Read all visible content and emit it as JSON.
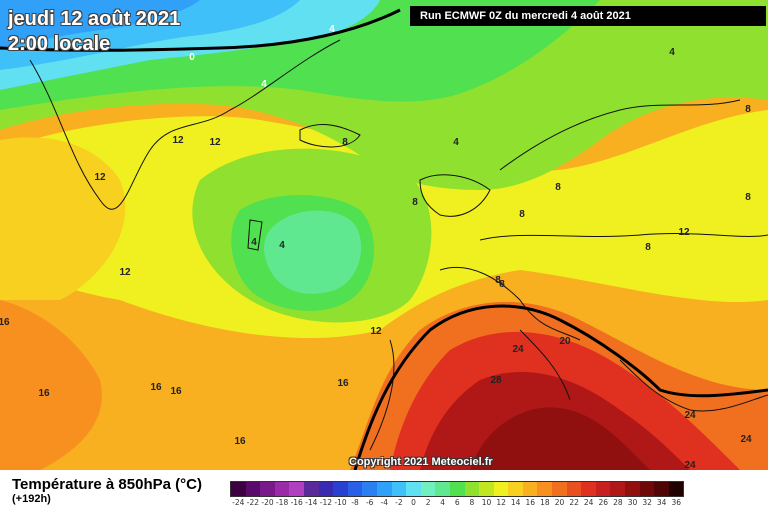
{
  "header": {
    "date": "jeudi 12 août 2021",
    "local_time": "2:00 locale",
    "run_info": "Run ECMWF 0Z du mercredi 4 août 2021"
  },
  "copyright": "Copyright 2021 Meteociel.fr",
  "footer": {
    "variable_title": "Température à 850hPa (°C)",
    "forecast_offset": "(+192h)"
  },
  "colorscale": {
    "values": [
      "-24",
      "-22",
      "-20",
      "-18",
      "-16",
      "-14",
      "-12",
      "-10",
      "-8",
      "-6",
      "-4",
      "-2",
      "0",
      "2",
      "4",
      "6",
      "8",
      "10",
      "12",
      "14",
      "16",
      "18",
      "20",
      "22",
      "24",
      "26",
      "28",
      "30",
      "32",
      "34",
      "36"
    ],
    "colors": [
      "#3d0040",
      "#5a0a6a",
      "#7a1a8a",
      "#9a2aa8",
      "#b040c0",
      "#5a2a9a",
      "#3a2ab0",
      "#2a40d0",
      "#2a60e8",
      "#2a80f0",
      "#30a0f8",
      "#40c0f8",
      "#60e0f0",
      "#70f0c0",
      "#60e890",
      "#50e050",
      "#90e030",
      "#c0e820",
      "#f0f020",
      "#f8d020",
      "#f8b020",
      "#f89020",
      "#f07020",
      "#e85020",
      "#e03020",
      "#c82020",
      "#b01818",
      "#901010",
      "#700808",
      "#500404",
      "#200000"
    ]
  },
  "contour_labels": [
    {
      "text": "4"
    },
    {
      "text": "0"
    },
    {
      "text": "4"
    },
    {
      "text": "4"
    },
    {
      "text": "12"
    },
    {
      "text": "12"
    },
    {
      "text": "12"
    },
    {
      "text": "8"
    },
    {
      "text": "4"
    },
    {
      "text": "8"
    },
    {
      "text": "8"
    },
    {
      "text": "8"
    },
    {
      "text": "8"
    },
    {
      "text": "8"
    },
    {
      "text": "8"
    },
    {
      "text": "12"
    },
    {
      "text": "4"
    },
    {
      "text": "4"
    },
    {
      "text": "12"
    },
    {
      "text": "12"
    },
    {
      "text": "16"
    },
    {
      "text": "16"
    },
    {
      "text": "16"
    },
    {
      "text": "16"
    },
    {
      "text": "16"
    },
    {
      "text": "16"
    },
    {
      "text": "24"
    },
    {
      "text": "20"
    },
    {
      "text": "28"
    },
    {
      "text": "24"
    },
    {
      "text": "24"
    },
    {
      "text": "24"
    },
    {
      "text": "8"
    },
    {
      "text": "8"
    }
  ]
}
